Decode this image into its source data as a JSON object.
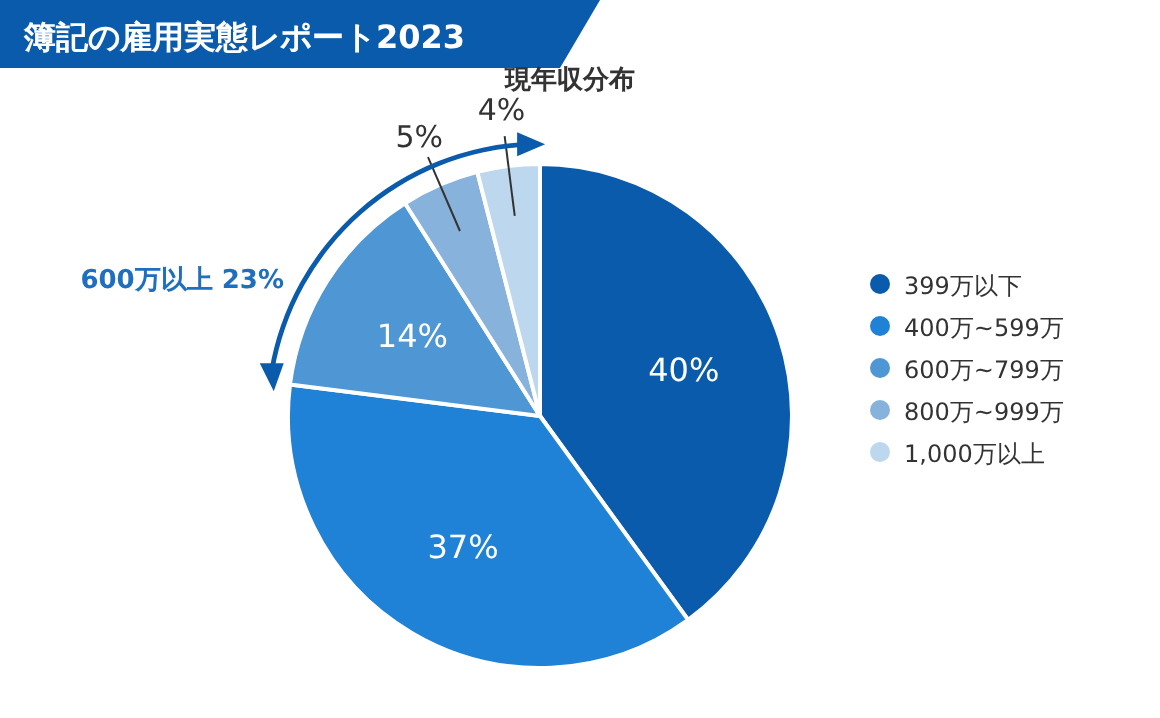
{
  "chart_data": {
    "type": "pie",
    "title": "簿記の雇用実態レポート2023",
    "subtitle": "現年収分布",
    "categories": [
      "399万以下",
      "400万~599万",
      "600万~799万",
      "800万~999万",
      "1,000万以上"
    ],
    "values": [
      40,
      37,
      14,
      5,
      4
    ],
    "value_labels": [
      "40%",
      "37%",
      "14%",
      "5%",
      "4%"
    ],
    "colors": [
      "#0a5bab",
      "#1f82d6",
      "#4e96d4",
      "#86b2dc",
      "#bcd7ee"
    ],
    "legend": "right",
    "annotations": [
      "600万以上 23%"
    ]
  }
}
